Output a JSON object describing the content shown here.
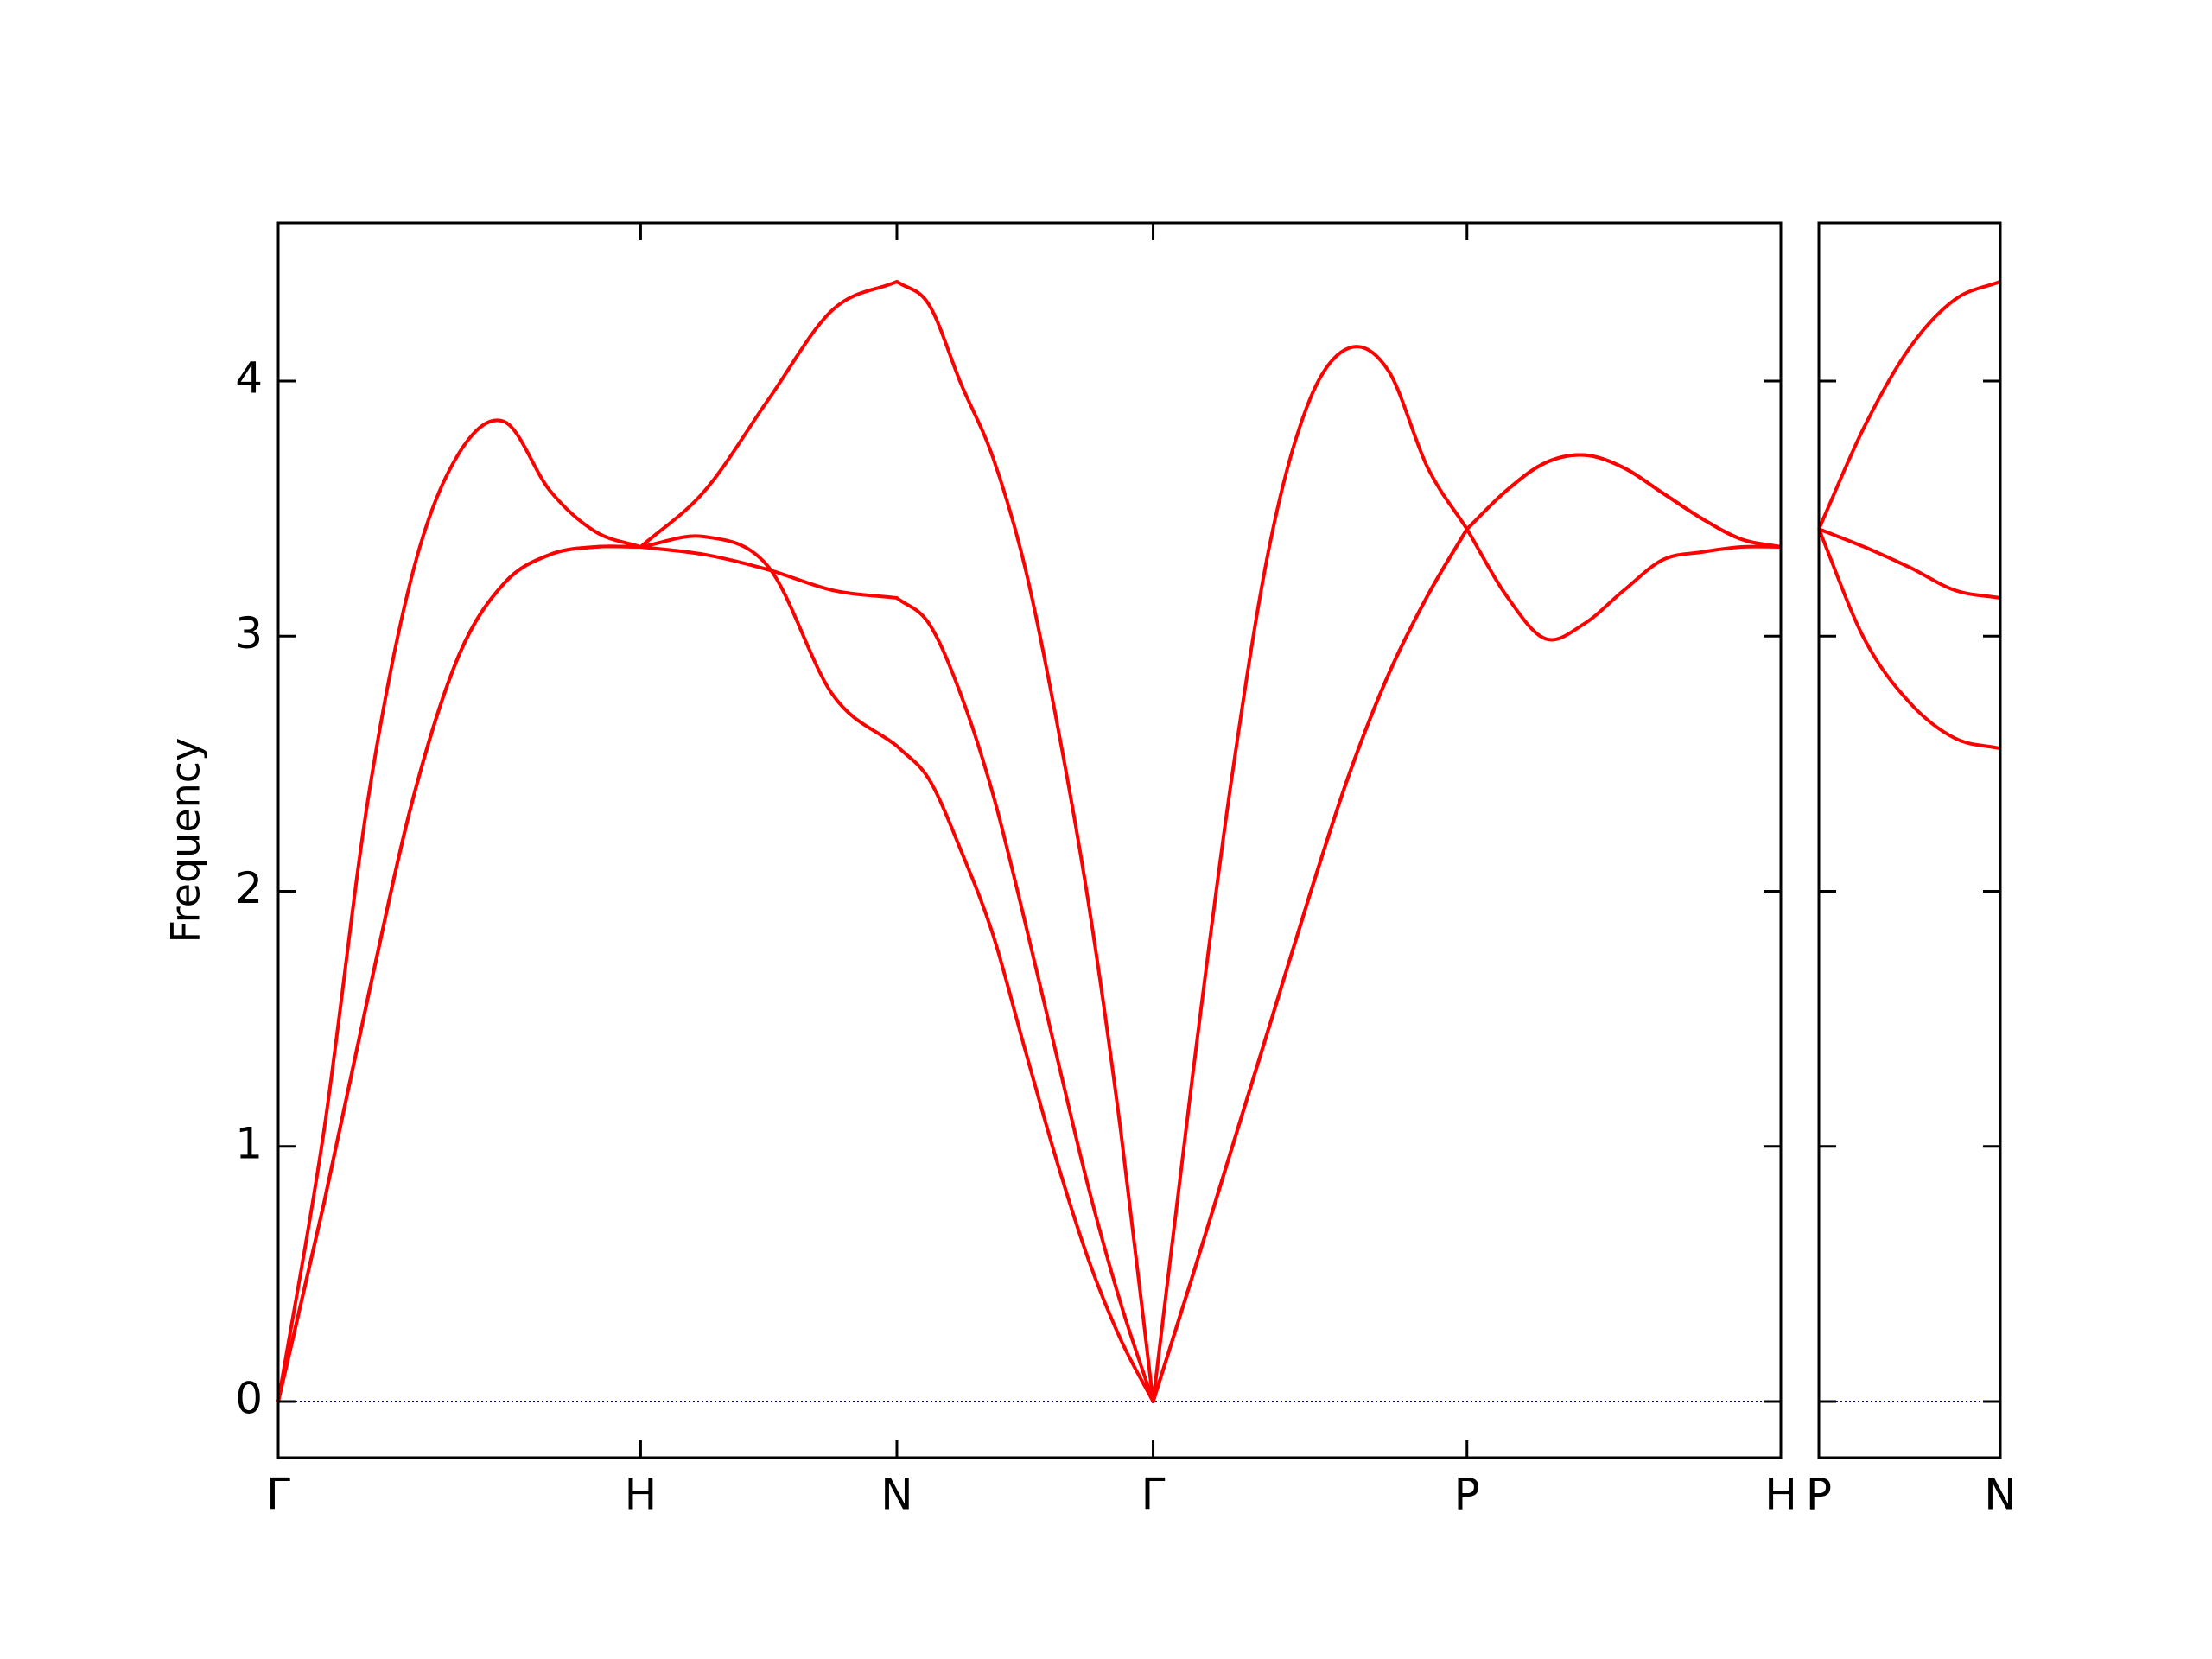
{
  "chart_data": [
    {
      "type": "line",
      "ylabel": "Frequency",
      "x": [
        0,
        0.125,
        0.25,
        0.375,
        0.5,
        0.625,
        0.75,
        0.875,
        1,
        1.1768,
        1.3536,
        1.5303,
        1.7071,
        1.7955,
        1.8839,
        1.9723,
        2.0607,
        2.149,
        2.2374,
        2.3258,
        2.4142,
        2.5225,
        2.6307,
        2.739,
        2.8472,
        2.9555,
        3.0637,
        3.172,
        3.2802,
        3.3885,
        3.4967,
        3.605,
        3.7132,
        3.8215,
        3.9297,
        4.038,
        4.1463
      ],
      "series": [
        {
          "color": "#ff0000",
          "values": [
            0,
            0.77,
            1.6,
            2.38,
            2.93,
            3.21,
            3.32,
            3.35,
            3.35,
            3.39,
            3.27,
            2.77,
            2.57,
            2.44,
            2.16,
            1.83,
            1.38,
            0.94,
            0.55,
            0.24,
            0,
            0.49,
            0.99,
            1.49,
            1.99,
            2.46,
            2.85,
            3.16,
            3.42,
            3.57,
            3.68,
            3.71,
            3.66,
            3.56,
            3.46,
            3.38,
            3.35
          ]
        },
        {
          "color": "#ff0000",
          "values": [
            0,
            0.77,
            1.6,
            2.38,
            2.93,
            3.21,
            3.32,
            3.35,
            3.35,
            3.32,
            3.26,
            3.18,
            3.15,
            3.05,
            2.77,
            2.38,
            1.88,
            1.35,
            0.83,
            0.38,
            0,
            0.49,
            0.99,
            1.49,
            1.99,
            2.46,
            2.85,
            3.16,
            3.42,
            3.57,
            3.68,
            3.71,
            3.66,
            3.56,
            3.46,
            3.38,
            3.35
          ]
        },
        {
          "color": "#ff0000",
          "values": [
            0,
            1.05,
            2.38,
            3.27,
            3.72,
            3.84,
            3.57,
            3.41,
            3.35,
            3.57,
            3.93,
            4.28,
            4.39,
            4.3,
            3.99,
            3.7,
            3.27,
            2.66,
            1.94,
            1.05,
            0,
            1.27,
            2.44,
            3.38,
            3.93,
            4.13,
            4.04,
            3.66,
            3.42,
            3.16,
            2.99,
            3.05,
            3.18,
            3.3,
            3.33,
            3.35,
            3.35
          ]
        }
      ],
      "xlim": [
        0,
        4.1463
      ],
      "xticks": [
        {
          "value": 0,
          "label": "Γ"
        },
        {
          "value": 1,
          "label": "H"
        },
        {
          "value": 1.7071,
          "label": "N"
        },
        {
          "value": 2.4142,
          "label": "Γ"
        },
        {
          "value": 3.2802,
          "label": "P"
        },
        {
          "value": 4.1463,
          "label": "H"
        }
      ],
      "ylim": [
        -0.22,
        4.62
      ],
      "yticks": [
        0,
        1,
        2,
        3,
        4
      ],
      "ytick_labels": true,
      "zero_line_color": "#00008b"
    },
    {
      "type": "line",
      "x": [
        0,
        0.125,
        0.25,
        0.375,
        0.5
      ],
      "series": [
        {
          "color": "#ff0000",
          "values": [
            3.42,
            2.99,
            2.74,
            2.6,
            2.56
          ]
        },
        {
          "color": "#ff0000",
          "values": [
            3.42,
            3.35,
            3.27,
            3.18,
            3.15
          ]
        },
        {
          "color": "#ff0000",
          "values": [
            3.42,
            3.82,
            4.13,
            4.32,
            4.39
          ]
        }
      ],
      "xlim": [
        0,
        0.5
      ],
      "xticks": [
        {
          "value": 0,
          "label": "P"
        },
        {
          "value": 0.5,
          "label": "N"
        }
      ],
      "ylim": [
        -0.22,
        4.62
      ],
      "yticks": [
        0,
        1,
        2,
        3,
        4
      ],
      "ytick_labels": false,
      "zero_line_color": "#00008b"
    }
  ]
}
